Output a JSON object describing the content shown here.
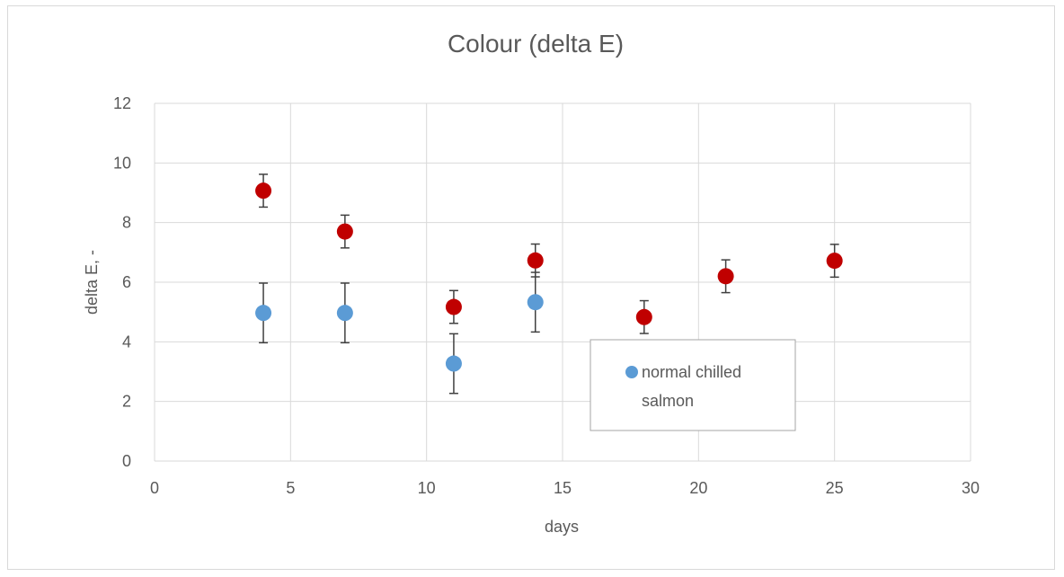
{
  "chart_data": {
    "type": "scatter",
    "title": "Colour (delta E)",
    "xlabel": "days",
    "ylabel": "delta E, -",
    "xlim": [
      0,
      30
    ],
    "ylim": [
      0,
      12
    ],
    "x_ticks": [
      0,
      5,
      10,
      15,
      20,
      25,
      30
    ],
    "y_ticks": [
      0,
      2,
      4,
      6,
      8,
      10,
      12
    ],
    "grid": true,
    "legend_position": "bottom-right inside plot",
    "series": [
      {
        "name": "normal chilled salmon",
        "color": "#5b9bd5",
        "points": [
          {
            "x": 4,
            "y": 4.97,
            "err": 1.0
          },
          {
            "x": 7,
            "y": 4.97,
            "err": 1.0
          },
          {
            "x": 11,
            "y": 3.27,
            "err": 1.0
          },
          {
            "x": 14,
            "y": 5.33,
            "err": 1.0
          }
        ]
      },
      {
        "color": "#c00000",
        "points": [
          {
            "x": 4,
            "y": 9.07,
            "err": 0.55
          },
          {
            "x": 7,
            "y": 7.7,
            "err": 0.55
          },
          {
            "x": 11,
            "y": 5.17,
            "err": 0.55
          },
          {
            "x": 14,
            "y": 6.73,
            "err": 0.55
          },
          {
            "x": 18,
            "y": 4.83,
            "err": 0.55
          },
          {
            "x": 21,
            "y": 6.2,
            "err": 0.55
          },
          {
            "x": 25,
            "y": 6.72,
            "err": 0.55
          }
        ]
      }
    ],
    "legend_entries": [
      "normal chilled",
      "salmon"
    ]
  }
}
